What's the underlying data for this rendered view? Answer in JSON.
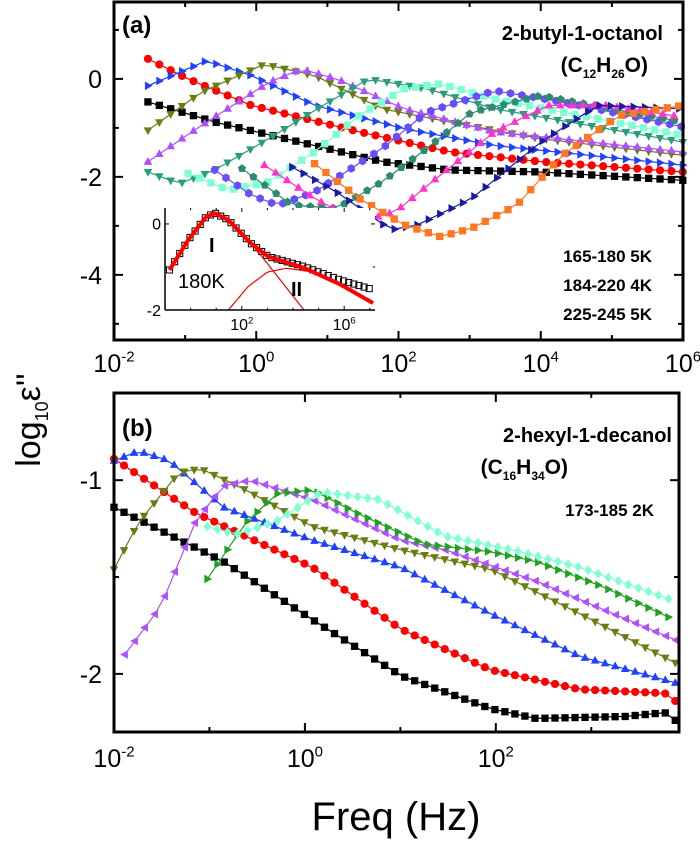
{
  "y_axis_title": {
    "main": "log",
    "sub": "10",
    "symbol": "ε''"
  },
  "x_axis_title": "Freq (Hz)",
  "chart_data": [
    {
      "type": "line",
      "panel_label": "(a)",
      "compound": "2-butyl-1-octanol",
      "formula": {
        "open": "(C",
        "n1": "12",
        "mid": "H",
        "n2": "26",
        "close": "O)"
      },
      "temperature_notes": [
        "165-180 5K",
        "184-220 4K",
        "225-245 5K"
      ],
      "x_scale": "log",
      "xlim": [
        0.01,
        1000000
      ],
      "ylim": [
        -5.33,
        1.57
      ],
      "x_ticks": [
        {
          "v": 0.01,
          "b": "10",
          "e": "-2"
        },
        {
          "v": 1,
          "b": "10",
          "e": "0"
        },
        {
          "v": 100,
          "b": "10",
          "e": "2"
        },
        {
          "v": 10000,
          "b": "10",
          "e": "4"
        },
        {
          "v": 1000000,
          "b": "10",
          "e": "6"
        }
      ],
      "y_ticks": [
        {
          "v": 0,
          "t": "0"
        },
        {
          "v": -2,
          "t": "-2"
        },
        {
          "v": -4,
          "t": "-4"
        }
      ],
      "series": [
        {
          "color": "#000000",
          "marker": "square",
          "x": [
            0.03,
            0.26,
            6.6,
            59,
            525,
            10000,
            1000000
          ],
          "y": [
            -0.47,
            -0.88,
            -1.36,
            -1.69,
            -1.86,
            -1.9,
            -2.07
          ]
        },
        {
          "color": "#ff0000",
          "marker": "circle",
          "x": [
            0.03,
            0.11,
            0.85,
            28,
            525,
            10000,
            1000000
          ],
          "y": [
            0.41,
            0,
            -0.54,
            -1.08,
            -1.49,
            -1.69,
            -1.9
          ]
        },
        {
          "color": "#2040ff",
          "marker": "triangle-right",
          "x": [
            0.03,
            0.2,
            0.85,
            6.6,
            120,
            2240,
            1000000
          ],
          "y": [
            -0.14,
            0.37,
            0.07,
            -0.54,
            -1.02,
            -1.36,
            -1.76
          ]
        },
        {
          "color": "#6b7d12",
          "marker": "triangle-down",
          "x": [
            0.03,
            0.17,
            1.3,
            6.6,
            59,
            525,
            10000,
            1000000
          ],
          "y": [
            -1.05,
            -0.27,
            0.3,
            0.07,
            -0.61,
            -0.88,
            -1.22,
            -1.56
          ]
        },
        {
          "color": "#b04fff",
          "marker": "triangle-up",
          "x": [
            0.03,
            0.17,
            1.5,
            4.3,
            13.5,
            120,
            2240,
            1000000
          ],
          "y": [
            -1.69,
            -0.95,
            -0.07,
            0.2,
            0,
            -0.61,
            -1.08,
            -1.49
          ]
        },
        {
          "color": "#2a9d7a",
          "marker": "triangle-down",
          "x": [
            0.03,
            0.083,
            0.26,
            1.5,
            8.7,
            38,
            250,
            2240,
            1000000
          ],
          "y": [
            -1.9,
            -2.14,
            -1.86,
            -1.22,
            -0.54,
            0,
            -0.2,
            -0.61,
            -1.29
          ]
        },
        {
          "color": "#7fffd4",
          "marker": "square",
          "x": [
            0.11,
            0.41,
            1.5,
            6.6,
            28,
            120,
            390,
            2240,
            1000000
          ],
          "y": [
            -1.93,
            -2.27,
            -2.1,
            -1.49,
            -0.75,
            -0.2,
            -0.1,
            -0.41,
            -1.15
          ]
        },
        {
          "color": "#6a4cff",
          "marker": "hexagon",
          "x": [
            0.26,
            0.85,
            2,
            6.6,
            59,
            250,
            2240,
            20000,
            1000000
          ],
          "y": [
            -1.86,
            -2.37,
            -2.58,
            -2.31,
            -1.42,
            -0.68,
            -0.24,
            -0.47,
            -0.98
          ]
        },
        {
          "color": "#2e8b6e",
          "marker": "pentagon",
          "x": [
            0.63,
            3.2,
            13.5,
            59,
            250,
            1070,
            10000,
            1000000
          ],
          "y": [
            -1.83,
            -2.58,
            -2.64,
            -2.1,
            -1.42,
            -0.68,
            -0.34,
            -0.88
          ]
        },
        {
          "color": "#ff33cc",
          "marker": "triangle-up",
          "x": [
            1.3,
            6.6,
            28,
            91,
            340,
            2240,
            12600,
            85000,
            1000000
          ],
          "y": [
            -1.76,
            -2.44,
            -2.92,
            -2.71,
            -2.03,
            -1.08,
            -0.54,
            -0.54,
            -0.78
          ]
        },
        {
          "color": "#1a1aa0",
          "marker": "triangle-right",
          "x": [
            3.2,
            13.5,
            78,
            186,
            1070,
            10000,
            63000,
            1000000
          ],
          "y": [
            -1.8,
            -2.31,
            -3.08,
            -2.98,
            -2.44,
            -1.29,
            -0.54,
            -0.61
          ]
        },
        {
          "color": "#ff7722",
          "marker": "square",
          "x": [
            6.6,
            28,
            120,
            390,
            1070,
            4570,
            20000,
            126000,
            1000000
          ],
          "y": [
            -1.73,
            -2.44,
            -2.98,
            -3.22,
            -3.05,
            -2.58,
            -1.56,
            -0.75,
            -0.54
          ]
        }
      ],
      "inset": {
        "label": "180K",
        "peak_labels": [
          "I",
          "II"
        ],
        "x_scale": "log",
        "xlim": [
          0.1,
          16000000
        ],
        "ylim": [
          -2,
          0.37
        ],
        "x_ticks": [
          {
            "v": 100,
            "b": "10",
            "e": "2"
          },
          {
            "v": 1000000,
            "b": "10",
            "e": "6"
          }
        ],
        "y_ticks": [
          {
            "v": 0,
            "t": "0"
          },
          {
            "v": -2,
            "t": "-2"
          }
        ],
        "data": {
          "color": "#000000",
          "marker": "open-square",
          "x": [
            0.15,
            0.81,
            4.1,
            9.1,
            30,
            224,
            1100,
            27000,
            676000,
            13500000
          ],
          "y": [
            -1.07,
            -0.37,
            0.17,
            0.25,
            0.09,
            -0.45,
            -0.76,
            -0.99,
            -1.3,
            -1.53
          ]
        },
        "fits": [
          {
            "color": "#ff0000",
            "width": "thick",
            "x": [
              0.15,
              0.81,
              4.1,
              9.1,
              30,
              224,
              1100,
              27000,
              676000,
              13500000
            ],
            "y": [
              -1.07,
              -0.37,
              0.17,
              0.25,
              0.09,
              -0.45,
              -0.76,
              -1.02,
              -1.4,
              -1.84
            ]
          },
          {
            "color": "#ff0000",
            "width": "thin",
            "x": [
              0.15,
              0.81,
              4.1,
              9.1,
              30,
              224,
              1100,
              5000,
              27000
            ],
            "y": [
              -1.07,
              -0.37,
              0.17,
              0.25,
              0.09,
              -0.45,
              -0.95,
              -1.45,
              -2
            ]
          },
          {
            "color": "#ff0000",
            "width": "thin",
            "x": [
              30,
              180,
              1000,
              5500,
              40000,
              676000,
              13500000
            ],
            "y": [
              -2,
              -1.45,
              -1.12,
              -1.03,
              -1.1,
              -1.4,
              -1.84
            ]
          }
        ]
      }
    },
    {
      "type": "line",
      "panel_label": "(b)",
      "compound": "2-hexyl-1-decanol",
      "formula": {
        "open": "(C",
        "n1": "16",
        "mid": "H",
        "n2": "34",
        "close": "O)"
      },
      "temperature_notes": [
        "173-185 2K"
      ],
      "x_scale": "log",
      "xlim": [
        0.01,
        8300
      ],
      "ylim": [
        -2.3,
        -0.55
      ],
      "x_ticks": [
        {
          "v": 0.01,
          "b": "10",
          "e": "-2"
        },
        {
          "v": 1,
          "b": "10",
          "e": "0"
        },
        {
          "v": 100,
          "b": "10",
          "e": "2"
        }
      ],
      "y_ticks": [
        {
          "v": -1,
          "t": "-1"
        },
        {
          "v": -2,
          "t": "-2"
        }
      ],
      "series": [
        {
          "color": "#000000",
          "marker": "square",
          "x": [
            0.01,
            0.14,
            1.2,
            10.2,
            89,
            263,
            2240,
            5900,
            8100
          ],
          "y": [
            -1.14,
            -1.42,
            -1.72,
            -2.01,
            -2.18,
            -2.23,
            -2.22,
            -2.2,
            -2.25
          ]
        },
        {
          "color": "#ff0000",
          "marker": "circle",
          "x": [
            0.01,
            0.072,
            1.2,
            10.2,
            89,
            760,
            5900,
            8100
          ],
          "y": [
            -0.89,
            -1.17,
            -1.45,
            -1.77,
            -1.98,
            -2.08,
            -2.1,
            -2.15
          ]
        },
        {
          "color": "#2040ff",
          "marker": "triangle-up",
          "x": [
            0.01,
            0.018,
            0.038,
            0.14,
            1.2,
            10.2,
            89,
            760,
            8100
          ],
          "y": [
            -0.9,
            -0.85,
            -0.9,
            -1.14,
            -1.31,
            -1.45,
            -1.69,
            -1.91,
            -2.05
          ]
        },
        {
          "color": "#6b7d12",
          "marker": "triangle-down",
          "x": [
            0.01,
            0.018,
            0.048,
            0.081,
            0.24,
            1.2,
            10.2,
            89,
            760,
            8100
          ],
          "y": [
            -1.46,
            -1.22,
            -0.96,
            -0.94,
            -1.05,
            -1.24,
            -1.36,
            -1.46,
            -1.69,
            -1.95
          ]
        },
        {
          "color": "#b04fff",
          "marker": "triangle-left",
          "x": [
            0.013,
            0.031,
            0.072,
            0.14,
            0.27,
            1.2,
            10.2,
            30,
            263,
            8100
          ],
          "y": [
            -1.9,
            -1.65,
            -1.21,
            -1.03,
            -1,
            -1.1,
            -1.31,
            -1.36,
            -1.52,
            -1.83
          ]
        },
        {
          "color": "#22a022",
          "marker": "triangle-right",
          "x": [
            0.095,
            0.24,
            0.51,
            1.2,
            3.5,
            17.8,
            89,
            263,
            1320,
            8100
          ],
          "y": [
            -1.51,
            -1.22,
            -1.07,
            -1.05,
            -1.17,
            -1.33,
            -1.37,
            -1.42,
            -1.55,
            -1.73
          ]
        },
        {
          "color": "#7fffd4",
          "marker": "diamond",
          "x": [
            0.095,
            0.19,
            0.51,
            1.5,
            6,
            30,
            150,
            760,
            8100
          ],
          "y": [
            -1.24,
            -1.28,
            -1.21,
            -1.06,
            -1.1,
            -1.29,
            -1.36,
            -1.45,
            -1.63
          ]
        }
      ]
    }
  ]
}
